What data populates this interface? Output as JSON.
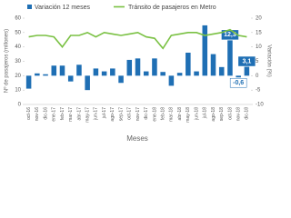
{
  "chart_data": {
    "type": "bar-line",
    "categories": [
      "oct-16",
      "nov-16",
      "dic-16",
      "ene-17",
      "feb-17",
      "mar-17",
      "abr-17",
      "may-17",
      "jun-17",
      "jul-17",
      "ago-17",
      "sep-17",
      "oct-17",
      "nov-17",
      "dic-17",
      "ene-18",
      "feb-18",
      "mar-18",
      "abr-18",
      "may-18",
      "jun-18",
      "jul-18",
      "ago-18",
      "sep-18",
      "oct-18",
      "nov-18",
      "dic-18"
    ],
    "series": [
      {
        "name": "Variación 12 meses",
        "type": "bar",
        "axis": "y2",
        "color": "#1f6fb4",
        "values": [
          -4.5,
          0.8,
          0.5,
          3.5,
          3.5,
          -2,
          3.8,
          -5,
          2.5,
          1.5,
          2.5,
          -2.5,
          5.5,
          6,
          1.5,
          6,
          1.3,
          -3.5,
          1,
          8,
          1.5,
          17.5,
          7.5,
          3,
          12.3,
          -0.6,
          3.1
        ],
        "value_labels": [
          null,
          null,
          null,
          null,
          null,
          null,
          null,
          null,
          null,
          null,
          null,
          null,
          null,
          null,
          null,
          null,
          null,
          null,
          null,
          null,
          null,
          null,
          null,
          null,
          "12,3",
          "-0,6",
          "3,1"
        ]
      },
      {
        "name": "Tránsito de pasajeros en Metro",
        "type": "line",
        "color": "#7ac143",
        "values": [
          47,
          48,
          48,
          47,
          40,
          48,
          48,
          50,
          47,
          50,
          49,
          48,
          49,
          50,
          47,
          46,
          39,
          48,
          49,
          50,
          50,
          48,
          49,
          50,
          52,
          48,
          47
        ]
      }
    ],
    "ylabel": "Nº de pasajeros (millones)",
    "y2label": "Variación (%)",
    "xlabel": "Meses",
    "ylim": [
      0,
      60
    ],
    "yticks": [
      0,
      10,
      20,
      30,
      40,
      50,
      60
    ],
    "y2lim": [
      -10,
      20
    ],
    "y2ticks": [
      -10,
      -5,
      0,
      5,
      10,
      15,
      20
    ]
  }
}
